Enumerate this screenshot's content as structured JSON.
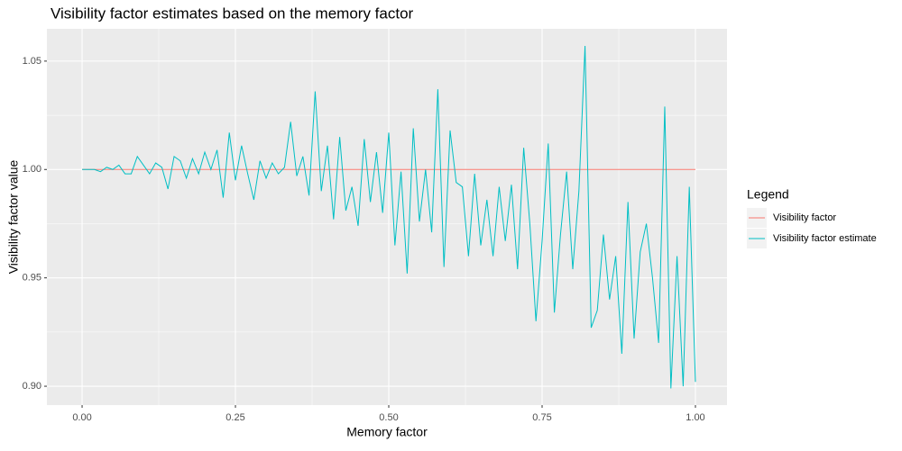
{
  "chart_data": {
    "type": "line",
    "title": "Visibility factor estimates based on the memory factor",
    "x_label": "Memory factor",
    "y_label": "Visibility factor value",
    "legend_title": "Legend",
    "legend_position": "right",
    "grid": true,
    "xlim": [
      -0.0574,
      1.0515
    ],
    "ylim": [
      0.8913,
      1.0649
    ],
    "xticks": [
      {
        "value": 0,
        "label": "0.00"
      },
      0.25,
      {
        "value": 0.5,
        "label": "0.50"
      },
      0.75,
      {
        "value": 1,
        "label": "1.00"
      }
    ],
    "yticks": [
      {
        "value": 0.9,
        "label": "0.90"
      },
      0.95,
      {
        "value": 1,
        "label": "1.00"
      },
      1.05
    ],
    "series": [
      {
        "name": "Visibility factor",
        "color": "#F8766D",
        "x": [
          0,
          1
        ],
        "values": [
          1,
          1
        ]
      },
      {
        "name": "Visibility factor estimate",
        "color": "#00BFC4",
        "x": [
          0,
          0.01,
          0.02,
          0.03,
          0.04,
          0.05,
          0.06,
          0.07,
          0.08,
          0.09,
          0.1,
          0.11,
          0.12,
          0.13,
          0.14,
          0.15,
          0.16,
          0.17,
          0.18,
          0.19,
          0.2,
          0.21,
          0.22,
          0.23,
          0.24,
          0.25,
          0.26,
          0.27,
          0.28,
          0.29,
          0.3,
          0.31,
          0.32,
          0.33,
          0.34,
          0.35,
          0.36,
          0.37,
          0.38,
          0.39,
          0.4,
          0.41,
          0.42,
          0.43,
          0.44,
          0.45,
          0.46,
          0.47,
          0.48,
          0.49,
          0.5,
          0.51,
          0.52,
          0.53,
          0.54,
          0.55,
          0.56,
          0.57,
          0.58,
          0.59,
          0.6,
          0.61,
          0.62,
          0.63,
          0.64,
          0.65,
          0.66,
          0.67,
          0.68,
          0.69,
          0.7,
          0.71,
          0.72,
          0.73,
          0.74,
          0.75,
          0.76,
          0.77,
          0.78,
          0.79,
          0.8,
          0.81,
          0.82,
          0.83,
          0.84,
          0.85,
          0.86,
          0.87,
          0.88,
          0.89,
          0.9,
          0.91,
          0.92,
          0.93,
          0.94,
          0.95,
          0.96,
          0.97,
          0.98,
          0.99,
          1
        ],
        "values": [
          1.0,
          1.0,
          1.0,
          0.999,
          1.001,
          1.0,
          1.002,
          0.998,
          0.998,
          1.006,
          1.002,
          0.998,
          1.003,
          1.001,
          0.991,
          1.006,
          1.004,
          0.996,
          1.005,
          0.998,
          1.008,
          1.0,
          1.009,
          0.987,
          1.017,
          0.995,
          1.011,
          0.998,
          0.986,
          1.004,
          0.996,
          1.003,
          0.998,
          1.001,
          1.022,
          0.997,
          1.006,
          0.988,
          1.036,
          0.99,
          1.011,
          0.977,
          1.015,
          0.981,
          0.992,
          0.974,
          1.014,
          0.985,
          1.008,
          0.98,
          1.017,
          0.965,
          0.999,
          0.952,
          1.019,
          0.976,
          1.0,
          0.971,
          1.037,
          0.955,
          1.018,
          0.994,
          0.992,
          0.96,
          0.998,
          0.965,
          0.986,
          0.96,
          0.992,
          0.967,
          0.993,
          0.954,
          1.01,
          0.975,
          0.93,
          0.967,
          1.012,
          0.934,
          0.97,
          0.999,
          0.954,
          0.99,
          1.057,
          0.927,
          0.935,
          0.97,
          0.94,
          0.96,
          0.915,
          0.985,
          0.922,
          0.962,
          0.975,
          0.95,
          0.92,
          1.029,
          0.899,
          0.96,
          0.9,
          0.992,
          0.902
        ]
      }
    ]
  }
}
